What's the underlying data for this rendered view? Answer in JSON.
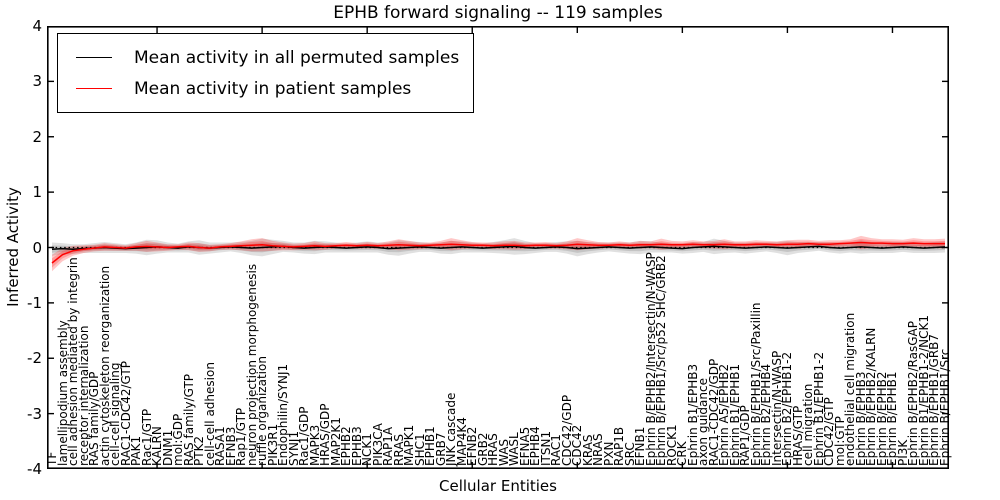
{
  "window": {
    "title": "EPHB forward signaling -- 119 samples"
  },
  "accent_colors": {
    "patient_line": "#ff0000",
    "permuted_line": "#000000",
    "patient_band": "#ff0000",
    "permuted_band": "#bdbdbd"
  },
  "chart_data": {
    "type": "line",
    "title": "EPHB forward signaling -- 119 samples",
    "xlabel": "Cellular Entities",
    "ylabel": "Inferred Activity",
    "ylim": [
      -4,
      4
    ],
    "yticks": [
      -4,
      -3,
      -2,
      -1,
      0,
      1,
      2,
      3,
      4
    ],
    "yticklabels": [
      "-4",
      "-3",
      "-2",
      "-1",
      "0",
      "1",
      "2",
      "3",
      "4"
    ],
    "xtick_interval": 10,
    "grid": false,
    "zero_line_style": "dotted",
    "legend_position": "upper left",
    "categories": [
      "TF",
      "lamellipodium assembly",
      "cell adhesion mediated by integrin",
      "receptor internalization",
      "RAS family/GDP",
      "actin cytoskeleton reorganization",
      "cell-cell signaling",
      "RAC1-CDC42/GTP",
      "PAK1",
      "Rac1/GTP",
      "KALRN",
      "DNM1",
      "mol:GDP",
      "RAS family/GTP",
      "PTK2",
      "cell-cell adhesion",
      "RASA1",
      "EFNB3",
      "Rap1/GTP",
      "neuron projection morphogenesis",
      "ruffle organization",
      "PIK3R1",
      "Endophilin/SYNJ1",
      "SYNJ1",
      "Rac1/GDP",
      "MAPK3",
      "HRAS/GDP",
      "MAP2K1",
      "EPHB2",
      "EPHB3",
      "NCK1",
      "PIK3CA",
      "RAP1A",
      "RRAS",
      "MAPK1",
      "SHC1",
      "EPHB1",
      "GRB7",
      "JNK cascade",
      "MAP4K4",
      "EFNB2",
      "GRB2",
      "HRAS",
      "WAS",
      "WASL",
      "EFNA5",
      "EPHB4",
      "ITSN1",
      "RAC1",
      "CDC42/GDP",
      "CDC42",
      "KRAS",
      "NRAS",
      "PXN",
      "RAP1B",
      "SRC",
      "EFNB1",
      "Ephrin B/EPHB2/Intersectin/N-WASP",
      "Ephrin B/EPHB1/Src/p52 SHC/GRB2",
      "ROCK1",
      "CRK",
      "Ephrin B1/EPHB3",
      "axon guidance",
      "RAC1-CDC42/GDP",
      "Ephrin A5/EPHB2",
      "Ephrin B1/EPHB1",
      "RAP1/GDP",
      "Ephrin B/EPHB1/Src/Paxillin",
      "Ephrin B2/EPHB4",
      "Intersectin/N-WASP",
      "Ephrin B2/EPHB1-2",
      "HRAS/GTP",
      "cell migration",
      "Ephrin B1/EPHB1-2",
      "CDC42/GTP",
      "mol:GTP",
      "endothelial cell migration",
      "Ephrin B/EPHB3",
      "Ephrin B/EPHB2/KALRN",
      "Ephrin B/EPHB2",
      "Ephrin B/EPHB1",
      "PI3K",
      "Ephrin B/EPHB2/RasGAP",
      "Ephrin B1/EPHB1-2/NCK1",
      "Ephrin B/EPHB1/GRB7",
      "Ephrin B/EPHB1/Src"
    ],
    "series": [
      {
        "name": "Mean activity in all permuted samples",
        "color": "#000000",
        "band_color": "#000000",
        "band_opacity": 0.12,
        "values": [
          -0.03,
          -0.02,
          -0.03,
          -0.02,
          -0.01,
          0.0,
          -0.01,
          -0.02,
          -0.01,
          0.0,
          0.01,
          0.0,
          -0.01,
          0.01,
          0.0,
          -0.01,
          0.0,
          0.01,
          0.0,
          -0.01,
          0.0,
          0.01,
          0.02,
          0.0,
          -0.01,
          0.0,
          0.01,
          0.0,
          -0.01,
          0.0,
          0.01,
          0.0,
          -0.02,
          -0.01,
          0.0,
          0.01,
          0.0,
          -0.01,
          0.0,
          0.01,
          0.0,
          -0.01,
          0.0,
          0.01,
          0.02,
          0.0,
          -0.01,
          0.0,
          0.01,
          0.0,
          -0.02,
          -0.01,
          0.0,
          0.01,
          0.0,
          -0.01,
          0.0,
          0.01,
          0.0,
          -0.01,
          -0.02,
          0.0,
          0.01,
          0.02,
          0.01,
          0.0,
          -0.01,
          0.0,
          0.01,
          0.0,
          -0.01,
          0.0,
          0.01,
          0.02,
          0.0,
          -0.01,
          0.0,
          0.01,
          0.0,
          -0.01,
          0.0,
          0.01,
          0.0,
          -0.01,
          0.0,
          0.01
        ],
        "band_halfwidths": [
          0.12,
          0.1,
          0.09,
          0.08,
          0.09,
          0.1,
          0.09,
          0.08,
          0.1,
          0.14,
          0.12,
          0.09,
          0.08,
          0.1,
          0.13,
          0.1,
          0.09,
          0.08,
          0.1,
          0.13,
          0.16,
          0.13,
          0.1,
          0.09,
          0.1,
          0.12,
          0.1,
          0.09,
          0.08,
          0.09,
          0.1,
          0.09,
          0.11,
          0.14,
          0.11,
          0.09,
          0.08,
          0.1,
          0.12,
          0.1,
          0.09,
          0.08,
          0.1,
          0.12,
          0.15,
          0.12,
          0.09,
          0.08,
          0.09,
          0.11,
          0.14,
          0.11,
          0.09,
          0.08,
          0.09,
          0.1,
          0.12,
          0.1,
          0.09,
          0.08,
          0.09,
          0.1,
          0.09,
          0.14,
          0.11,
          0.09,
          0.1,
          0.09,
          0.08,
          0.1,
          0.13,
          0.1,
          0.09,
          0.08,
          0.09,
          0.1,
          0.09,
          0.12,
          0.1,
          0.09,
          0.1,
          0.09,
          0.1,
          0.09,
          0.1,
          0.1
        ]
      },
      {
        "name": "Mean activity in patient samples",
        "color": "#ff0000",
        "band_color": "#ff0000",
        "band_opacity": 0.22,
        "values": [
          -0.28,
          -0.13,
          -0.06,
          -0.03,
          -0.01,
          0.01,
          0.0,
          -0.01,
          0.01,
          0.02,
          0.01,
          0.0,
          0.01,
          0.02,
          0.0,
          -0.01,
          0.01,
          0.02,
          0.03,
          0.04,
          0.05,
          0.03,
          0.02,
          0.01,
          0.02,
          0.03,
          0.02,
          0.03,
          0.04,
          0.03,
          0.04,
          0.03,
          0.04,
          0.05,
          0.04,
          0.03,
          0.04,
          0.05,
          0.06,
          0.05,
          0.04,
          0.04,
          0.03,
          0.04,
          0.04,
          0.03,
          0.04,
          0.04,
          0.03,
          0.04,
          0.06,
          0.05,
          0.04,
          0.04,
          0.05,
          0.04,
          0.05,
          0.05,
          0.06,
          0.05,
          0.05,
          0.06,
          0.05,
          0.05,
          0.06,
          0.05,
          0.05,
          0.06,
          0.06,
          0.05,
          0.06,
          0.06,
          0.07,
          0.06,
          0.06,
          0.07,
          0.08,
          0.09,
          0.08,
          0.08,
          0.07,
          0.07,
          0.08,
          0.07,
          0.07,
          0.07
        ],
        "band_halfwidths": [
          0.15,
          0.12,
          0.09,
          0.07,
          0.06,
          0.07,
          0.06,
          0.05,
          0.07,
          0.1,
          0.08,
          0.06,
          0.05,
          0.07,
          0.08,
          0.06,
          0.05,
          0.06,
          0.08,
          0.11,
          0.12,
          0.09,
          0.07,
          0.06,
          0.06,
          0.08,
          0.06,
          0.05,
          0.06,
          0.05,
          0.06,
          0.05,
          0.07,
          0.1,
          0.08,
          0.06,
          0.05,
          0.07,
          0.11,
          0.08,
          0.06,
          0.05,
          0.06,
          0.07,
          0.08,
          0.06,
          0.05,
          0.06,
          0.05,
          0.07,
          0.11,
          0.08,
          0.06,
          0.05,
          0.06,
          0.05,
          0.07,
          0.06,
          0.1,
          0.07,
          0.06,
          0.07,
          0.06,
          0.07,
          0.09,
          0.06,
          0.06,
          0.07,
          0.06,
          0.06,
          0.07,
          0.08,
          0.07,
          0.06,
          0.07,
          0.06,
          0.07,
          0.12,
          0.09,
          0.07,
          0.08,
          0.07,
          0.09,
          0.08,
          0.08,
          0.09
        ]
      }
    ]
  }
}
